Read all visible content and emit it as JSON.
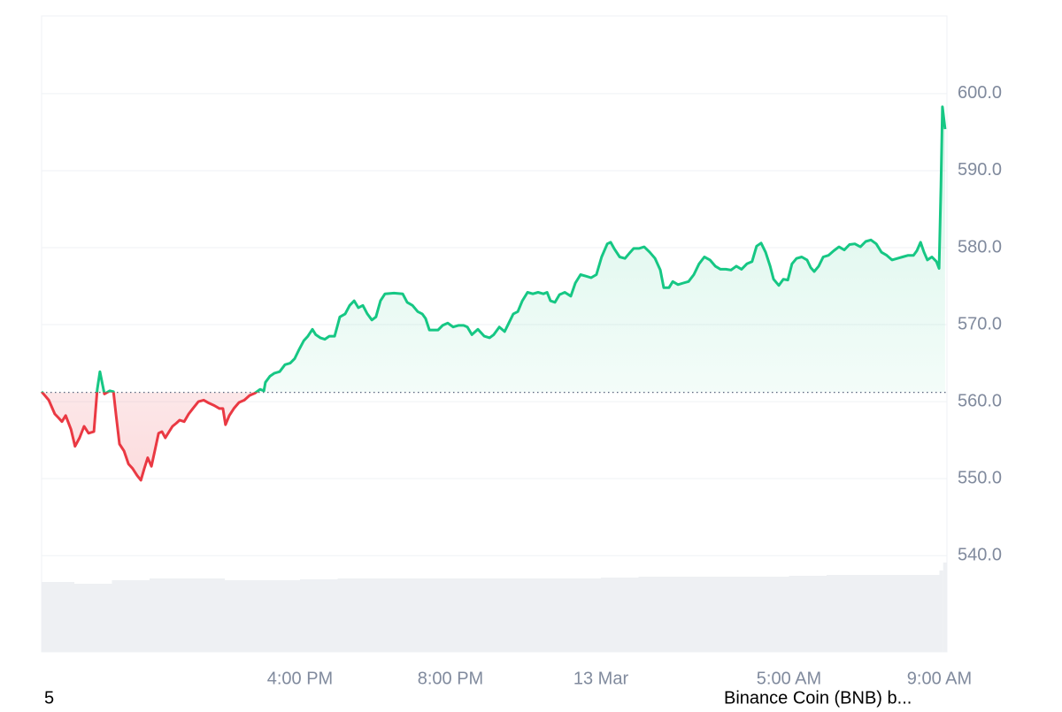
{
  "chart_data": {
    "type": "line",
    "x": [
      9.13,
      9.32,
      9.48,
      9.58,
      9.67,
      9.77,
      9.91,
      10.02,
      10.14,
      10.26,
      10.38,
      10.52,
      10.61,
      10.68,
      10.8,
      10.94,
      11.04,
      11.11,
      11.2,
      11.32,
      11.44,
      11.55,
      11.67,
      11.77,
      11.86,
      11.95,
      12.05,
      12.14,
      12.24,
      12.33,
      12.42,
      12.52,
      12.61,
      12.71,
      12.8,
      12.92,
      13.04,
      13.15,
      13.3,
      13.44,
      13.58,
      13.72,
      13.86,
      13.95,
      14.02,
      14.12,
      14.24,
      14.38,
      14.52,
      14.66,
      14.8,
      14.94,
      15.04,
      15.08,
      15.2,
      15.32,
      15.46,
      15.6,
      15.74,
      15.86,
      15.98,
      16.1,
      16.21,
      16.33,
      16.42,
      16.54,
      16.66,
      16.78,
      16.92,
      17.06,
      17.2,
      17.32,
      17.44,
      17.55,
      17.67,
      17.79,
      17.91,
      18.02,
      18.14,
      18.26,
      18.5,
      18.73,
      18.85,
      18.99,
      19.13,
      19.25,
      19.34,
      19.44,
      19.55,
      19.67,
      19.79,
      19.93,
      20.07,
      20.21,
      20.35,
      20.45,
      20.57,
      20.73,
      20.9,
      21.04,
      21.15,
      21.3,
      21.44,
      21.55,
      21.67,
      21.79,
      21.91,
      22.05,
      22.19,
      22.33,
      22.47,
      22.57,
      22.66,
      22.78,
      22.9,
      23.04,
      23.2,
      23.32,
      23.46,
      23.6,
      23.74,
      23.88,
      24.02,
      24.17,
      24.26,
      24.35,
      24.5,
      24.64,
      24.78,
      24.87,
      25.01,
      25.15,
      25.3,
      25.44,
      25.58,
      25.67,
      25.81,
      25.91,
      26.05,
      26.19,
      26.33,
      26.47,
      26.61,
      26.75,
      26.9,
      27.04,
      27.18,
      27.32,
      27.46,
      27.6,
      27.74,
      27.88,
      28.02,
      28.14,
      28.26,
      28.38,
      28.5,
      28.59,
      28.73,
      28.85,
      28.97,
      29.08,
      29.2,
      29.34,
      29.48,
      29.58,
      29.67,
      29.79,
      29.91,
      30.05,
      30.19,
      30.33,
      30.47,
      30.61,
      30.75,
      30.9,
      31.04,
      31.18,
      31.32,
      31.46,
      31.6,
      31.74,
      31.88,
      32.02,
      32.17,
      32.31,
      32.4,
      32.5,
      32.59,
      32.68,
      32.8,
      32.92,
      32.99,
      33.04,
      33.08,
      33.15
    ],
    "values": [
      561.3,
      560.2,
      558.4,
      557.9,
      557.4,
      558.2,
      556.4,
      554.2,
      555.3,
      556.8,
      555.9,
      556.1,
      561.6,
      563.9,
      561.0,
      561.4,
      561.3,
      558.2,
      554.5,
      553.6,
      551.9,
      551.3,
      550.4,
      549.8,
      551.3,
      552.7,
      551.6,
      553.6,
      555.9,
      556.1,
      555.3,
      556.1,
      556.8,
      557.2,
      557.6,
      557.4,
      558.4,
      559.1,
      560.0,
      560.2,
      559.8,
      559.5,
      559.1,
      559.1,
      557.0,
      558.2,
      559.1,
      559.9,
      560.2,
      560.8,
      561.1,
      561.6,
      561.4,
      562.5,
      563.3,
      563.7,
      563.9,
      564.8,
      565.0,
      565.6,
      566.8,
      567.9,
      568.5,
      569.4,
      568.7,
      568.3,
      568.1,
      568.5,
      568.5,
      571.0,
      571.4,
      572.5,
      573.1,
      572.2,
      572.5,
      571.4,
      570.6,
      571.0,
      573.1,
      574.0,
      574.1,
      574.0,
      572.9,
      572.5,
      571.7,
      571.4,
      570.8,
      569.3,
      569.3,
      569.3,
      569.9,
      570.2,
      569.7,
      569.9,
      569.9,
      569.7,
      568.7,
      569.4,
      568.5,
      568.3,
      568.7,
      569.7,
      569.1,
      570.2,
      571.4,
      571.7,
      573.1,
      574.2,
      574.0,
      574.2,
      574.0,
      574.2,
      573.1,
      572.9,
      573.9,
      574.2,
      573.7,
      575.4,
      576.5,
      576.3,
      576.1,
      576.5,
      578.8,
      580.5,
      580.7,
      579.9,
      578.8,
      578.6,
      579.4,
      579.9,
      579.9,
      580.1,
      579.4,
      578.6,
      577.1,
      574.8,
      574.8,
      575.6,
      575.2,
      575.4,
      575.6,
      576.5,
      577.9,
      578.8,
      578.4,
      577.6,
      577.2,
      577.2,
      577.1,
      577.6,
      577.2,
      577.9,
      578.2,
      580.2,
      580.6,
      579.4,
      577.6,
      575.9,
      575.1,
      575.9,
      575.8,
      577.9,
      578.6,
      578.8,
      578.4,
      577.4,
      576.9,
      577.6,
      578.8,
      579.0,
      579.6,
      580.1,
      579.7,
      580.4,
      580.5,
      580.1,
      580.8,
      581.0,
      580.5,
      579.4,
      579.0,
      578.4,
      578.6,
      578.8,
      579.0,
      579.0,
      579.6,
      580.7,
      579.4,
      578.4,
      578.8,
      578.2,
      577.3,
      587.9,
      598.3,
      595.4
    ],
    "color_up": "#16c784",
    "color_down": "#ea3943",
    "baseline": 561.2,
    "xlim": [
      9.13,
      33.2
    ],
    "xticks": [
      {
        "value": 16,
        "label": "4:00 PM"
      },
      {
        "value": 20,
        "label": "8:00 PM"
      },
      {
        "value": 24,
        "label": "13 Mar"
      },
      {
        "value": 29,
        "label": "5:00 AM"
      },
      {
        "value": 33,
        "label": "9:00 AM"
      }
    ],
    "ylim": [
      527.5,
      610.1
    ],
    "yticks": [
      {
        "value": 540,
        "label": "540.0"
      },
      {
        "value": 550,
        "label": "550.0"
      },
      {
        "value": 560,
        "label": "560.0"
      },
      {
        "value": 570,
        "label": "570.0"
      },
      {
        "value": 580,
        "label": "580.0"
      },
      {
        "value": 590,
        "label": "590.0"
      },
      {
        "value": 600,
        "label": "600.0"
      }
    ],
    "grid": true,
    "volume": {
      "x": [
        9.13,
        10,
        11,
        12,
        13,
        14,
        15,
        16,
        17,
        18,
        19,
        20,
        21,
        22,
        23,
        24,
        25,
        26,
        27,
        28,
        29,
        30,
        31,
        32,
        33,
        33.1
      ],
      "values": [
        79,
        77,
        81,
        83,
        83,
        81,
        81,
        82,
        83,
        83,
        83,
        83,
        83,
        83,
        83,
        84,
        85,
        85,
        85,
        85,
        86,
        87,
        87,
        87,
        92,
        101
      ],
      "color": "#eef0f3"
    }
  },
  "footer": {
    "left": "5",
    "right": "Binance Coin (BNB) b..."
  }
}
